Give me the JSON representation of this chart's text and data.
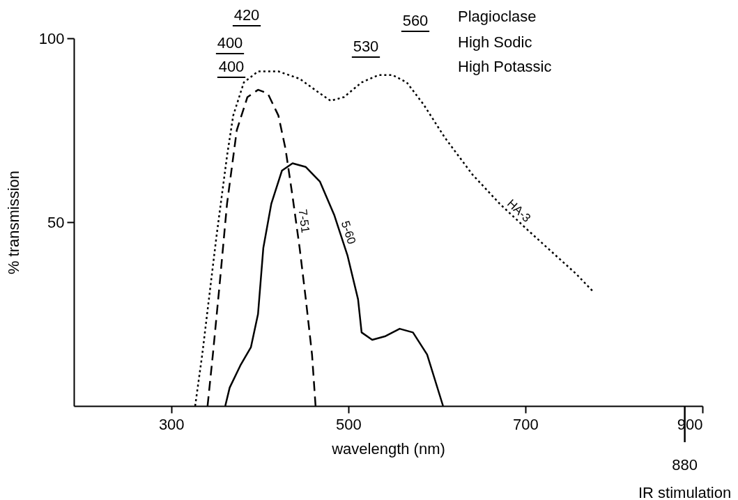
{
  "chart_data": {
    "type": "line",
    "xlabel": "wavelength (nm)",
    "ylabel": "% transmission",
    "xlim": [
      190,
      900
    ],
    "ylim": [
      0,
      100
    ],
    "xticks": [
      300,
      500,
      700,
      900
    ],
    "yticks": [
      50,
      100
    ],
    "grid": false,
    "legend": false,
    "marker": "none",
    "series": [
      {
        "name": "HA-3",
        "color": "#000000",
        "line_style": "dotted",
        "x": [
          327,
          335,
          343,
          351,
          363,
          370,
          382,
          398,
          421,
          445,
          468,
          480,
          495,
          515,
          534,
          550,
          566,
          585,
          609,
          640,
          671,
          702,
          734,
          757,
          777
        ],
        "values": [
          0,
          14,
          30,
          46,
          68,
          79,
          88,
          91,
          91,
          89,
          85,
          83,
          84,
          88,
          90,
          90,
          88,
          82,
          73,
          63,
          55,
          48,
          41,
          36,
          31
        ]
      },
      {
        "name": "7-51",
        "color": "#000000",
        "line_style": "dashed",
        "x": [
          341,
          347,
          355,
          363,
          374,
          386,
          398,
          409,
          421,
          429,
          437,
          445,
          452,
          459,
          463
        ],
        "values": [
          0,
          14,
          34,
          55,
          75,
          84,
          86,
          85,
          79,
          70,
          57,
          43,
          29,
          14,
          0
        ]
      },
      {
        "name": "5-60",
        "color": "#000000",
        "line_style": "solid",
        "x": [
          361,
          366,
          378,
          390,
          398,
          404,
          413,
          425,
          437,
          452,
          468,
          484,
          499,
          511,
          515,
          527,
          542,
          558,
          573,
          589,
          607
        ],
        "values": [
          0,
          5,
          11,
          16,
          25,
          43,
          55,
          64,
          66,
          65,
          61,
          52,
          41,
          29,
          20,
          18,
          19,
          21,
          20,
          14,
          0
        ]
      }
    ],
    "ref_lines": [
      {
        "axis": "x",
        "value": 880,
        "label": "880"
      }
    ],
    "annotations": [
      "420",
      "560",
      "Plagioclase",
      "400",
      "530",
      "High Sodic",
      "400",
      "High Potassic",
      "IR stimulation"
    ]
  }
}
